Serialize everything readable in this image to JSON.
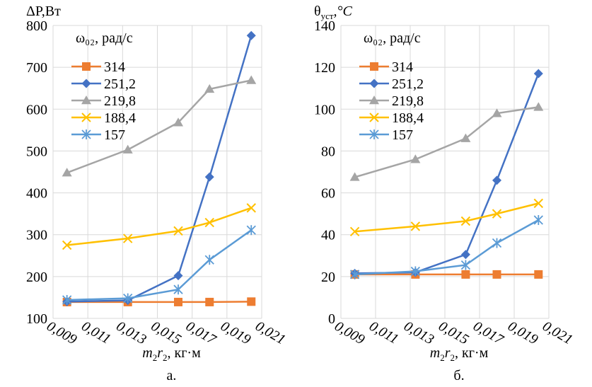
{
  "chart_data": [
    {
      "type": "line",
      "panel_label": "а.",
      "ylabel_main": "ΔP",
      "ylabel_unit": ",Вт",
      "xlabel_prefix": "m",
      "xlabel_unit": ", кг·м",
      "legend_title": "ω₀₂, рад/с",
      "ylim": [
        100,
        800
      ],
      "yticks": [
        100,
        200,
        300,
        400,
        500,
        600,
        700,
        800
      ],
      "ytick_labels": [
        "100",
        "200",
        "300",
        "400",
        "500",
        "600",
        "700",
        "800"
      ],
      "xlim": [
        0.009,
        0.021
      ],
      "xticks": [
        0.009,
        0.011,
        0.013,
        0.015,
        0.017,
        0.019,
        0.021
      ],
      "xtick_labels": [
        "0,009",
        "0,011",
        "0,013",
        "0,015",
        "0,017",
        "0,019",
        "0,021"
      ],
      "x": [
        0.0098,
        0.0133,
        0.0162,
        0.018,
        0.0204
      ],
      "grid": true,
      "legend_position": "top-left",
      "series": [
        {
          "name": "314",
          "color": "#ED7D31",
          "marker": "square",
          "values": [
            139,
            139,
            139,
            139,
            140
          ]
        },
        {
          "name": "251,2",
          "color": "#4472C4",
          "marker": "diamond",
          "values": [
            140,
            143,
            202,
            438,
            776
          ]
        },
        {
          "name": "219,8",
          "color": "#A5A5A5",
          "marker": "triangle",
          "values": [
            448,
            503,
            568,
            648,
            669
          ]
        },
        {
          "name": "188,4",
          "color": "#FFC000",
          "marker": "x",
          "values": [
            275,
            291,
            309,
            329,
            364
          ]
        },
        {
          "name": "157",
          "color": "#5B9BD5",
          "marker": "star",
          "values": [
            144,
            148,
            169,
            240,
            311
          ]
        }
      ]
    },
    {
      "type": "line",
      "panel_label": "б.",
      "ylabel_main": "θ",
      "ylabel_sub": "уст",
      "ylabel_unit": ",°C",
      "xlabel_prefix": "m",
      "xlabel_unit": ", кг·м",
      "legend_title": "ω₀₂, рад/с",
      "ylim": [
        0,
        140
      ],
      "yticks": [
        0,
        20,
        40,
        60,
        80,
        100,
        120,
        140
      ],
      "ytick_labels": [
        "0",
        "20",
        "40",
        "60",
        "80",
        "100",
        "120",
        "140"
      ],
      "xlim": [
        0.009,
        0.021
      ],
      "xticks": [
        0.009,
        0.011,
        0.013,
        0.015,
        0.017,
        0.019,
        0.021
      ],
      "xtick_labels": [
        "0,009",
        "0,011",
        "0,013",
        "0,015",
        "0,017",
        "0,019",
        "0,021"
      ],
      "x": [
        0.0098,
        0.0133,
        0.0162,
        0.018,
        0.0204
      ],
      "grid": true,
      "legend_position": "top-left",
      "series": [
        {
          "name": "314",
          "color": "#ED7D31",
          "marker": "square",
          "values": [
            21,
            21,
            21,
            21,
            21
          ]
        },
        {
          "name": "251,2",
          "color": "#4472C4",
          "marker": "diamond",
          "values": [
            21.5,
            22,
            30.5,
            66,
            117
          ]
        },
        {
          "name": "219,8",
          "color": "#A5A5A5",
          "marker": "triangle",
          "values": [
            67.5,
            76,
            86,
            98,
            101
          ]
        },
        {
          "name": "188,4",
          "color": "#FFC000",
          "marker": "x",
          "values": [
            41.5,
            44,
            46.5,
            50,
            55
          ]
        },
        {
          "name": "157",
          "color": "#5B9BD5",
          "marker": "star",
          "values": [
            21,
            22.5,
            25.5,
            36,
            47
          ]
        }
      ]
    }
  ]
}
